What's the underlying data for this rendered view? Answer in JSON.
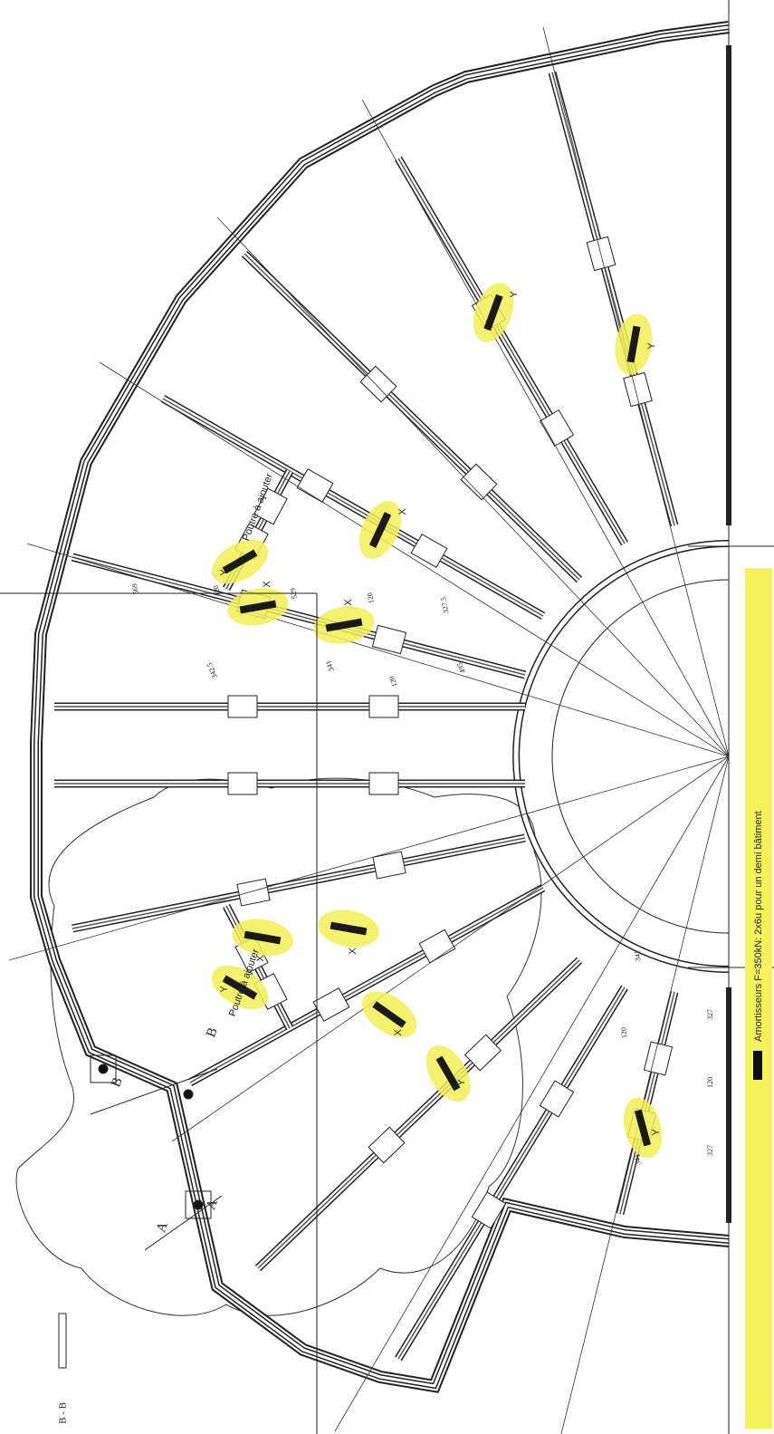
{
  "legend": "Amortisseurs F=350kN: 2x6u pour un demi bâtiment",
  "annotations": [
    "Poutre à ajouter",
    "Poutre à ajouter"
  ],
  "damper_labels": [
    "Y",
    "Y",
    "X",
    "Y",
    "X",
    "X",
    "X",
    "X",
    "Y",
    "X",
    "Y",
    "Y"
  ],
  "dimensions": [
    "569",
    "120",
    "529",
    "120",
    "327.5",
    "342.5",
    "341",
    "120",
    "495",
    "341",
    "120",
    "341",
    "327",
    "120",
    "327"
  ],
  "section_marks": [
    "B",
    "A",
    "A",
    "B"
  ],
  "section_title": "B - B"
}
